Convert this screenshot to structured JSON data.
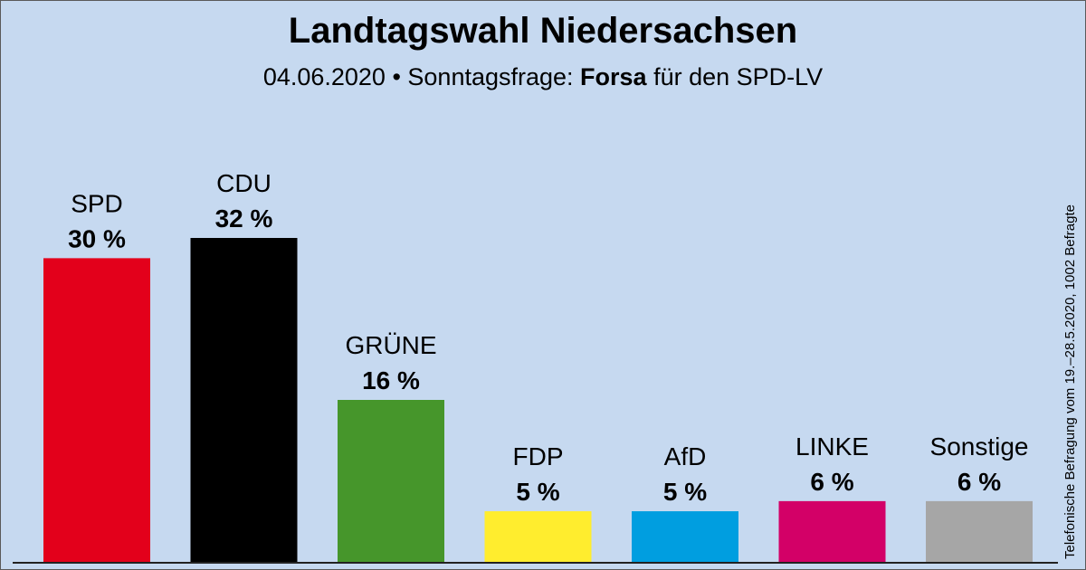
{
  "header": {
    "title": "Landtagswahl Niedersachsen",
    "subtitle_date": "04.06.2020",
    "subtitle_sep": " • Sonntagsfrage: ",
    "subtitle_institute": "Forsa",
    "subtitle_client": " für den SPD-LV"
  },
  "side_note": "Telefonische Befragung vom 19.–28.5.2020, 1002 Befragte",
  "chart_data": {
    "type": "bar",
    "categories": [
      "SPD",
      "CDU",
      "GRÜNE",
      "FDP",
      "AfD",
      "LINKE",
      "Sonstige"
    ],
    "values": [
      30,
      32,
      16,
      5,
      5,
      6,
      6
    ],
    "value_labels": [
      "30 %",
      "32 %",
      "16 %",
      "5 %",
      "5 %",
      "6 %",
      "6 %"
    ],
    "colors": [
      "#e3001b",
      "#000000",
      "#46962b",
      "#ffed2e",
      "#009ee0",
      "#d30067",
      "#a6a6a6"
    ],
    "ylim": [
      0,
      32
    ],
    "grid": false,
    "legend": "none"
  }
}
